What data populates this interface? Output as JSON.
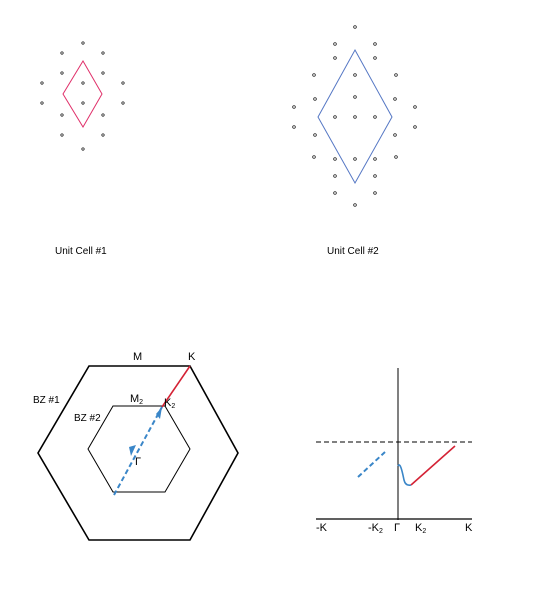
{
  "colors": {
    "cell1": "#e0306a",
    "cell2": "#5577c4",
    "red_path": "#d42235",
    "blue_path": "#3a86c8",
    "ink": "#000000"
  },
  "unit_cells": {
    "cell1_label": "Unit Cell #1",
    "cell2_label": "Unit Cell #2"
  },
  "brillouin_zone": {
    "bz1_label": "BZ #1",
    "bz2_label": "BZ #2",
    "m_label": "M",
    "k_label": "K",
    "m2_main": "M",
    "m2_sub": "2",
    "k2_main": "K",
    "k2_sub": "2",
    "gamma_label": "Γ"
  },
  "band_plot": {
    "tick_neg_k": "-K",
    "tick_neg_k2_main": "-K",
    "tick_neg_k2_sub": "2",
    "tick_gamma": "Γ",
    "tick_k2_main": "K",
    "tick_k2_sub": "2",
    "tick_k": "K"
  }
}
